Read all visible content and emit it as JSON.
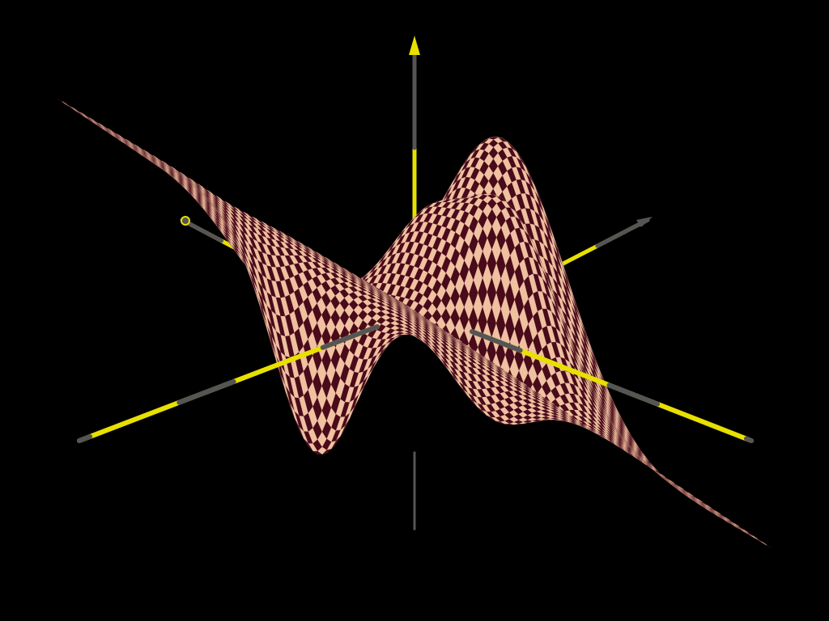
{
  "scene": {
    "background_color": "#000000",
    "surface": {
      "pattern": "checkerboard",
      "light_color": "#f2c3a2",
      "dark_color": "#4a0a1a",
      "highlight_color": "#e0304a"
    },
    "axes": {
      "colors": [
        "#e8e000",
        "#555555"
      ],
      "count": 3
    }
  }
}
